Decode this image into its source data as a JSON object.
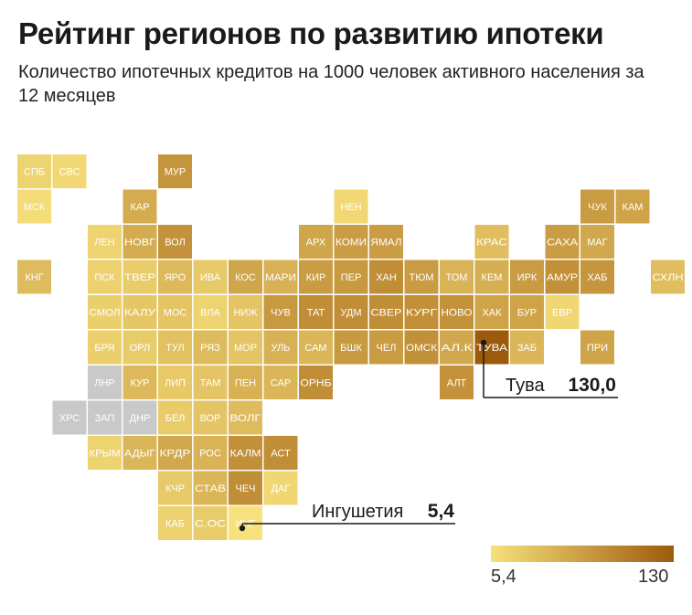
{
  "title": "Рейтинг регионов по развитию ипотеки",
  "subtitle": "Количество ипотечных кредитов на 1000 человек активного населения за 12 месяцев",
  "colors": {
    "low": "#f7e17c",
    "high": "#9e5a0c",
    "no_data": "#c9c9c9",
    "text_on_tile": "#ffffff"
  },
  "chart_data": {
    "type": "heatmap",
    "title": "Рейтинг регионов по развитию ипотеки",
    "subtitle": "Количество ипотечных кредитов на 1000 человек активного населения за 12 месяцев",
    "value_range": [
      5.4,
      130
    ],
    "legend": {
      "min_label": "5,4",
      "max_label": "130",
      "placement": "bottom-right"
    },
    "cells": [
      {
        "label": "СПБ",
        "col": 0,
        "row": 0,
        "value": 18
      },
      {
        "label": "СВС",
        "col": 1,
        "row": 0,
        "value": 14
      },
      {
        "label": "МУР",
        "col": 4,
        "row": 0,
        "value": 75
      },
      {
        "label": "МСК",
        "col": 0,
        "row": 1,
        "value": 10
      },
      {
        "label": "КАР",
        "col": 3,
        "row": 1,
        "value": 55
      },
      {
        "label": "НЕН",
        "col": 9,
        "row": 1,
        "value": 14
      },
      {
        "label": "ЧУК",
        "col": 16,
        "row": 1,
        "value": 70
      },
      {
        "label": "КАМ",
        "col": 17,
        "row": 1,
        "value": 62
      },
      {
        "label": "ЛЕН",
        "col": 2,
        "row": 2,
        "value": 18
      },
      {
        "label": "НОВГ",
        "col": 3,
        "row": 2,
        "value": 55
      },
      {
        "label": "ВОЛ",
        "col": 4,
        "row": 2,
        "value": 78
      },
      {
        "label": "АРХ",
        "col": 8,
        "row": 2,
        "value": 60
      },
      {
        "label": "КОМИ",
        "col": 9,
        "row": 2,
        "value": 68
      },
      {
        "label": "ЯМАЛ",
        "col": 10,
        "row": 2,
        "value": 68
      },
      {
        "label": "КРАС",
        "col": 13,
        "row": 2,
        "value": 38
      },
      {
        "label": "САХА",
        "col": 15,
        "row": 2,
        "value": 68
      },
      {
        "label": "МАГ",
        "col": 16,
        "row": 2,
        "value": 58
      },
      {
        "label": "КНГ",
        "col": 0,
        "row": 3,
        "value": 40
      },
      {
        "label": "ПСК",
        "col": 2,
        "row": 3,
        "value": 20
      },
      {
        "label": "ТВЕР",
        "col": 3,
        "row": 3,
        "value": 25
      },
      {
        "label": "ЯРО",
        "col": 4,
        "row": 3,
        "value": 42
      },
      {
        "label": "ИВА",
        "col": 5,
        "row": 3,
        "value": 28
      },
      {
        "label": "КОС",
        "col": 6,
        "row": 3,
        "value": 60
      },
      {
        "label": "МАРИ",
        "col": 7,
        "row": 3,
        "value": 50
      },
      {
        "label": "КИР",
        "col": 8,
        "row": 3,
        "value": 70
      },
      {
        "label": "ПЕР",
        "col": 9,
        "row": 3,
        "value": 72
      },
      {
        "label": "ХАН",
        "col": 10,
        "row": 3,
        "value": 82
      },
      {
        "label": "ТЮМ",
        "col": 11,
        "row": 3,
        "value": 70
      },
      {
        "label": "ТОМ",
        "col": 12,
        "row": 3,
        "value": 48
      },
      {
        "label": "КЕМ",
        "col": 13,
        "row": 3,
        "value": 52
      },
      {
        "label": "ИРК",
        "col": 14,
        "row": 3,
        "value": 70
      },
      {
        "label": "АМУР",
        "col": 15,
        "row": 3,
        "value": 80
      },
      {
        "label": "ХАБ",
        "col": 16,
        "row": 3,
        "value": 75
      },
      {
        "label": "СХЛН",
        "col": 18,
        "row": 3,
        "value": 38
      },
      {
        "label": "СМОЛ",
        "col": 2,
        "row": 4,
        "value": 22
      },
      {
        "label": "КАЛУ",
        "col": 3,
        "row": 4,
        "value": 30
      },
      {
        "label": "МОС",
        "col": 4,
        "row": 4,
        "value": 32
      },
      {
        "label": "ВЛА",
        "col": 5,
        "row": 4,
        "value": 18
      },
      {
        "label": "НИЖ",
        "col": 6,
        "row": 4,
        "value": 32
      },
      {
        "label": "ЧУВ",
        "col": 7,
        "row": 4,
        "value": 72
      },
      {
        "label": "ТАТ",
        "col": 8,
        "row": 4,
        "value": 82
      },
      {
        "label": "УДМ",
        "col": 9,
        "row": 4,
        "value": 82
      },
      {
        "label": "СВЕР",
        "col": 10,
        "row": 4,
        "value": 82
      },
      {
        "label": "КУРГ",
        "col": 11,
        "row": 4,
        "value": 80
      },
      {
        "label": "НОВО",
        "col": 12,
        "row": 4,
        "value": 78
      },
      {
        "label": "ХАК",
        "col": 13,
        "row": 4,
        "value": 62
      },
      {
        "label": "БУР",
        "col": 14,
        "row": 4,
        "value": 62
      },
      {
        "label": "ЕВР",
        "col": 15,
        "row": 4,
        "value": 15
      },
      {
        "label": "БРЯ",
        "col": 2,
        "row": 5,
        "value": 22
      },
      {
        "label": "ОРЛ",
        "col": 3,
        "row": 5,
        "value": 25
      },
      {
        "label": "ТУЛ",
        "col": 4,
        "row": 5,
        "value": 35
      },
      {
        "label": "РЯЗ",
        "col": 5,
        "row": 5,
        "value": 40
      },
      {
        "label": "МОР",
        "col": 6,
        "row": 5,
        "value": 32
      },
      {
        "label": "УЛЬ",
        "col": 7,
        "row": 5,
        "value": 50
      },
      {
        "label": "САМ",
        "col": 8,
        "row": 5,
        "value": 45
      },
      {
        "label": "БШК",
        "col": 9,
        "row": 5,
        "value": 72
      },
      {
        "label": "ЧЕЛ",
        "col": 10,
        "row": 5,
        "value": 70
      },
      {
        "label": "ОМСК",
        "col": 11,
        "row": 5,
        "value": 80
      },
      {
        "label": "АЛ.К",
        "col": 12,
        "row": 5,
        "value": 58
      },
      {
        "label": "ТУВА",
        "col": 13,
        "row": 5,
        "value": 130
      },
      {
        "label": "ЗАБ",
        "col": 14,
        "row": 5,
        "value": 45
      },
      {
        "label": "ПРИ",
        "col": 16,
        "row": 5,
        "value": 62
      },
      {
        "label": "ЛНР",
        "col": 2,
        "row": 6,
        "value": null
      },
      {
        "label": "КУР",
        "col": 3,
        "row": 6,
        "value": 42
      },
      {
        "label": "ЛИП",
        "col": 4,
        "row": 6,
        "value": 28
      },
      {
        "label": "ТАМ",
        "col": 5,
        "row": 6,
        "value": 32
      },
      {
        "label": "ПЕН",
        "col": 6,
        "row": 6,
        "value": 50
      },
      {
        "label": "САР",
        "col": 7,
        "row": 6,
        "value": 45
      },
      {
        "label": "ОРНБ",
        "col": 8,
        "row": 6,
        "value": 82
      },
      {
        "label": "АЛТ",
        "col": 12,
        "row": 6,
        "value": 78
      },
      {
        "label": "ХРС",
        "col": 1,
        "row": 7,
        "value": null
      },
      {
        "label": "ЗАП",
        "col": 2,
        "row": 7,
        "value": null
      },
      {
        "label": "ДНР",
        "col": 3,
        "row": 7,
        "value": null
      },
      {
        "label": "БЕЛ",
        "col": 4,
        "row": 7,
        "value": 25
      },
      {
        "label": "ВОР",
        "col": 5,
        "row": 7,
        "value": 32
      },
      {
        "label": "ВОЛГ",
        "col": 6,
        "row": 7,
        "value": 40
      },
      {
        "label": "КРЫМ",
        "col": 2,
        "row": 8,
        "value": 18
      },
      {
        "label": "АДЫГ",
        "col": 3,
        "row": 8,
        "value": 45
      },
      {
        "label": "КРДР",
        "col": 4,
        "row": 8,
        "value": 58
      },
      {
        "label": "РОС",
        "col": 5,
        "row": 8,
        "value": 48
      },
      {
        "label": "КАЛМ",
        "col": 6,
        "row": 8,
        "value": 80
      },
      {
        "label": "АСТ",
        "col": 7,
        "row": 8,
        "value": 82
      },
      {
        "label": "КЧР",
        "col": 4,
        "row": 9,
        "value": 28
      },
      {
        "label": "СТАВ",
        "col": 5,
        "row": 9,
        "value": 45
      },
      {
        "label": "ЧЕЧ",
        "col": 6,
        "row": 9,
        "value": 82
      },
      {
        "label": "ДАГ",
        "col": 7,
        "row": 9,
        "value": 15
      },
      {
        "label": "КАБ",
        "col": 4,
        "row": 10,
        "value": 20
      },
      {
        "label": "С.ОС",
        "col": 5,
        "row": 10,
        "value": 25
      },
      {
        "label": "ИНГ",
        "col": 6,
        "row": 10,
        "value": 5.4
      }
    ],
    "annotations": [
      {
        "region": "ТУВА",
        "name": "Тува",
        "value_label": "130,0"
      },
      {
        "region": "ИНГ",
        "name": "Ингушетия",
        "value_label": "5,4"
      }
    ]
  }
}
